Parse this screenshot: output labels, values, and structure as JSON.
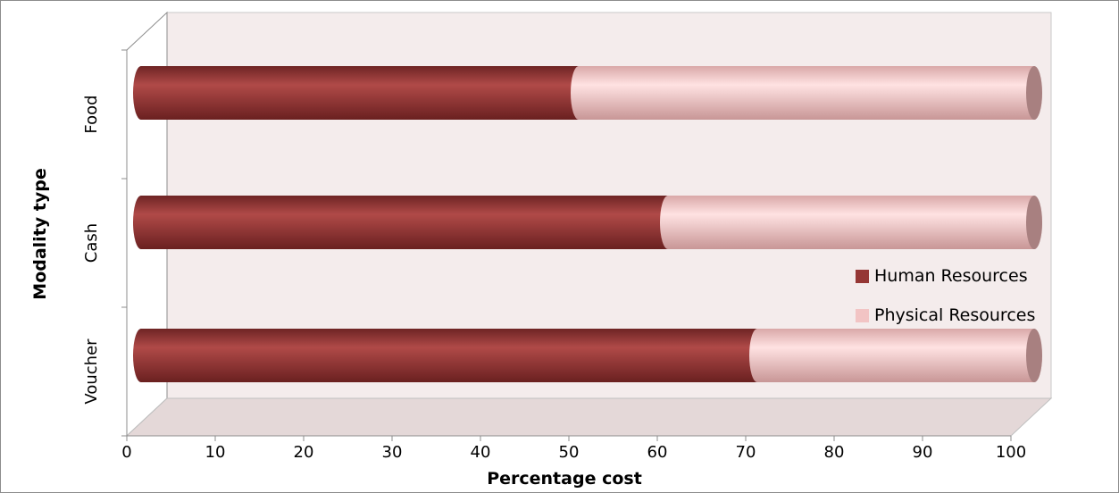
{
  "chart_data": {
    "type": "bar",
    "orientation": "horizontal",
    "stacked": true,
    "style": "3d-cylinder",
    "categories": [
      "Voucher",
      "Cash",
      "Food"
    ],
    "series": [
      {
        "name": "Human Resources",
        "values": [
          69,
          59,
          49
        ],
        "color": "#953735"
      },
      {
        "name": "Physical Resources",
        "values": [
          31,
          41,
          51
        ],
        "color": "#f2c4c4"
      }
    ],
    "xlabel": "Percentage cost",
    "ylabel": "Modality type",
    "xlim": [
      0,
      100
    ],
    "xticks": [
      "0",
      "10",
      "20",
      "30",
      "40",
      "50",
      "60",
      "70",
      "80",
      "90",
      "100"
    ],
    "legend_position": "right",
    "wall_color": "#f4ecec",
    "floor_color": "#e4d8d8"
  }
}
